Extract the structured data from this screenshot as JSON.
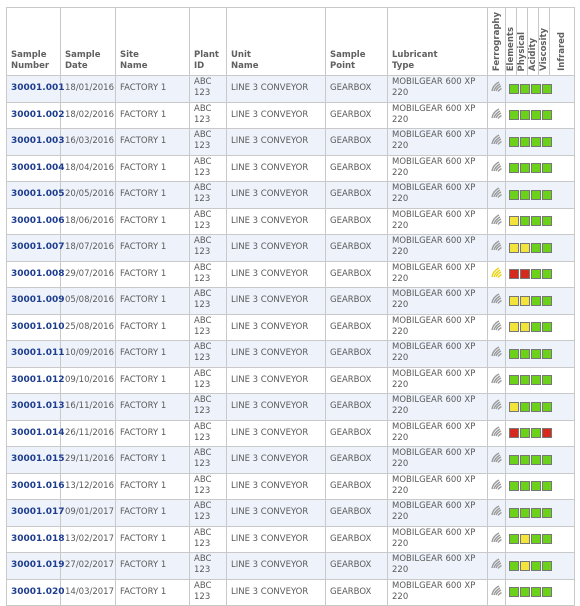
{
  "headers": {
    "sample_number": [
      "Sample",
      "Number"
    ],
    "sample_date": [
      "Sample",
      "Date"
    ],
    "site_name": [
      "Site",
      "Name"
    ],
    "plant_id": [
      "Plant",
      "ID"
    ],
    "unit_name": [
      "Unit",
      "Name"
    ],
    "sample_point": [
      "Sample",
      "Point"
    ],
    "lubricant_type": [
      "Lubricant",
      "Type"
    ],
    "vertical": [
      "Ferrography",
      "Elements",
      "Physical",
      "Acidity",
      "Viscosity",
      "Infrared"
    ]
  },
  "colors": {
    "green": "#6cd219",
    "yellow": "#f2e43a",
    "red": "#d62a1e",
    "icon_grey": "#9a9a9a",
    "icon_yellow": "#e8d419"
  },
  "rows": [
    {
      "number": "30001.001",
      "date": "18/01/2016",
      "site": "FACTORY 1",
      "plant": [
        "ABC",
        "123"
      ],
      "unit": "LINE 3 CONVEYOR",
      "point": "GEARBOX",
      "lubricant": [
        "MOBILGEAR 600 XP",
        "220"
      ],
      "ferro": "grey",
      "results": [
        "green",
        "green",
        "green",
        "green"
      ]
    },
    {
      "number": "30001.002",
      "date": "18/02/2016",
      "site": "FACTORY 1",
      "plant": [
        "ABC",
        "123"
      ],
      "unit": "LINE 3 CONVEYOR",
      "point": "GEARBOX",
      "lubricant": [
        "MOBILGEAR 600 XP",
        "220"
      ],
      "ferro": "grey",
      "results": [
        "green",
        "green",
        "green",
        "green"
      ]
    },
    {
      "number": "30001.003",
      "date": "16/03/2016",
      "site": "FACTORY 1",
      "plant": [
        "ABC",
        "123"
      ],
      "unit": "LINE 3 CONVEYOR",
      "point": "GEARBOX",
      "lubricant": [
        "MOBILGEAR 600 XP",
        "220"
      ],
      "ferro": "grey",
      "results": [
        "green",
        "green",
        "green",
        "green"
      ]
    },
    {
      "number": "30001.004",
      "date": "18/04/2016",
      "site": "FACTORY 1",
      "plant": [
        "ABC",
        "123"
      ],
      "unit": "LINE 3 CONVEYOR",
      "point": "GEARBOX",
      "lubricant": [
        "MOBILGEAR 600 XP",
        "220"
      ],
      "ferro": "grey",
      "results": [
        "green",
        "green",
        "green",
        "green"
      ]
    },
    {
      "number": "30001.005",
      "date": "20/05/2016",
      "site": "FACTORY 1",
      "plant": [
        "ABC",
        "123"
      ],
      "unit": "LINE 3 CONVEYOR",
      "point": "GEARBOX",
      "lubricant": [
        "MOBILGEAR 600 XP",
        "220"
      ],
      "ferro": "grey",
      "results": [
        "green",
        "green",
        "green",
        "green"
      ]
    },
    {
      "number": "30001.006",
      "date": "18/06/2016",
      "site": "FACTORY 1",
      "plant": [
        "ABC",
        "123"
      ],
      "unit": "LINE 3 CONVEYOR",
      "point": "GEARBOX",
      "lubricant": [
        "MOBILGEAR 600 XP",
        "220"
      ],
      "ferro": "grey",
      "results": [
        "yellow",
        "green",
        "green",
        "green"
      ]
    },
    {
      "number": "30001.007",
      "date": "18/07/2016",
      "site": "FACTORY 1",
      "plant": [
        "ABC",
        "123"
      ],
      "unit": "LINE 3 CONVEYOR",
      "point": "GEARBOX",
      "lubricant": [
        "MOBILGEAR 600 XP",
        "220"
      ],
      "ferro": "grey",
      "results": [
        "yellow",
        "yellow",
        "green",
        "green"
      ]
    },
    {
      "number": "30001.008",
      "date": "29/07/2016",
      "site": "FACTORY 1",
      "plant": [
        "ABC",
        "123"
      ],
      "unit": "LINE 3 CONVEYOR",
      "point": "GEARBOX",
      "lubricant": [
        "MOBILGEAR 600 XP",
        "220"
      ],
      "ferro": "yellow",
      "results": [
        "red",
        "red",
        "green",
        "green"
      ]
    },
    {
      "number": "30001.009",
      "date": "05/08/2016",
      "site": "FACTORY 1",
      "plant": [
        "ABC",
        "123"
      ],
      "unit": "LINE 3 CONVEYOR",
      "point": "GEARBOX",
      "lubricant": [
        "MOBILGEAR 600 XP",
        "220"
      ],
      "ferro": "grey",
      "results": [
        "yellow",
        "yellow",
        "green",
        "green"
      ]
    },
    {
      "number": "30001.010",
      "date": "25/08/2016",
      "site": "FACTORY 1",
      "plant": [
        "ABC",
        "123"
      ],
      "unit": "LINE 3 CONVEYOR",
      "point": "GEARBOX",
      "lubricant": [
        "MOBILGEAR 600 XP",
        "220"
      ],
      "ferro": "grey",
      "results": [
        "yellow",
        "yellow",
        "green",
        "green"
      ]
    },
    {
      "number": "30001.011",
      "date": "10/09/2016",
      "site": "FACTORY 1",
      "plant": [
        "ABC",
        "123"
      ],
      "unit": "LINE 3 CONVEYOR",
      "point": "GEARBOX",
      "lubricant": [
        "MOBILGEAR 600 XP",
        "220"
      ],
      "ferro": "grey",
      "results": [
        "green",
        "green",
        "green",
        "green"
      ]
    },
    {
      "number": "30001.012",
      "date": "09/10/2016",
      "site": "FACTORY 1",
      "plant": [
        "ABC",
        "123"
      ],
      "unit": "LINE 3 CONVEYOR",
      "point": "GEARBOX",
      "lubricant": [
        "MOBILGEAR 600 XP",
        "220"
      ],
      "ferro": "grey",
      "results": [
        "green",
        "green",
        "green",
        "green"
      ]
    },
    {
      "number": "30001.013",
      "date": "16/11/2016",
      "site": "FACTORY 1",
      "plant": [
        "ABC",
        "123"
      ],
      "unit": "LINE 3 CONVEYOR",
      "point": "GEARBOX",
      "lubricant": [
        "MOBILGEAR 600 XP",
        "220"
      ],
      "ferro": "grey",
      "results": [
        "yellow",
        "green",
        "green",
        "green"
      ]
    },
    {
      "number": "30001.014",
      "date": "26/11/2016",
      "site": "FACTORY 1",
      "plant": [
        "ABC",
        "123"
      ],
      "unit": "LINE 3 CONVEYOR",
      "point": "GEARBOX",
      "lubricant": [
        "MOBILGEAR 600 XP",
        "220"
      ],
      "ferro": "grey",
      "results": [
        "red",
        "green",
        "green",
        "red"
      ]
    },
    {
      "number": "30001.015",
      "date": "29/11/2016",
      "site": "FACTORY 1",
      "plant": [
        "ABC",
        "123"
      ],
      "unit": "LINE 3 CONVEYOR",
      "point": "GEARBOX",
      "lubricant": [
        "MOBILGEAR 600 XP",
        "220"
      ],
      "ferro": "grey",
      "results": [
        "green",
        "green",
        "green",
        "green"
      ]
    },
    {
      "number": "30001.016",
      "date": "13/12/2016",
      "site": "FACTORY 1",
      "plant": [
        "ABC",
        "123"
      ],
      "unit": "LINE 3 CONVEYOR",
      "point": "GEARBOX",
      "lubricant": [
        "MOBILGEAR 600 XP",
        "220"
      ],
      "ferro": "grey",
      "results": [
        "green",
        "green",
        "green",
        "green"
      ]
    },
    {
      "number": "30001.017",
      "date": "09/01/2017",
      "site": "FACTORY 1",
      "plant": [
        "ABC",
        "123"
      ],
      "unit": "LINE 3 CONVEYOR",
      "point": "GEARBOX",
      "lubricant": [
        "MOBILGEAR 600 XP",
        "220"
      ],
      "ferro": "grey",
      "results": [
        "green",
        "green",
        "green",
        "green"
      ]
    },
    {
      "number": "30001.018",
      "date": "13/02/2017",
      "site": "FACTORY 1",
      "plant": [
        "ABC",
        "123"
      ],
      "unit": "LINE 3 CONVEYOR",
      "point": "GEARBOX",
      "lubricant": [
        "MOBILGEAR 600 XP",
        "220"
      ],
      "ferro": "grey",
      "results": [
        "green",
        "yellow",
        "green",
        "green"
      ]
    },
    {
      "number": "30001.019",
      "date": "27/02/2017",
      "site": "FACTORY 1",
      "plant": [
        "ABC",
        "123"
      ],
      "unit": "LINE 3 CONVEYOR",
      "point": "GEARBOX",
      "lubricant": [
        "MOBILGEAR 600 XP",
        "220"
      ],
      "ferro": "grey",
      "results": [
        "green",
        "yellow",
        "green",
        "green"
      ]
    },
    {
      "number": "30001.020",
      "date": "14/03/2017",
      "site": "FACTORY 1",
      "plant": [
        "ABC",
        "123"
      ],
      "unit": "LINE 3 CONVEYOR",
      "point": "GEARBOX",
      "lubricant": [
        "MOBILGEAR 600 XP",
        "220"
      ],
      "ferro": "grey",
      "results": [
        "green",
        "green",
        "green",
        "green"
      ]
    }
  ]
}
